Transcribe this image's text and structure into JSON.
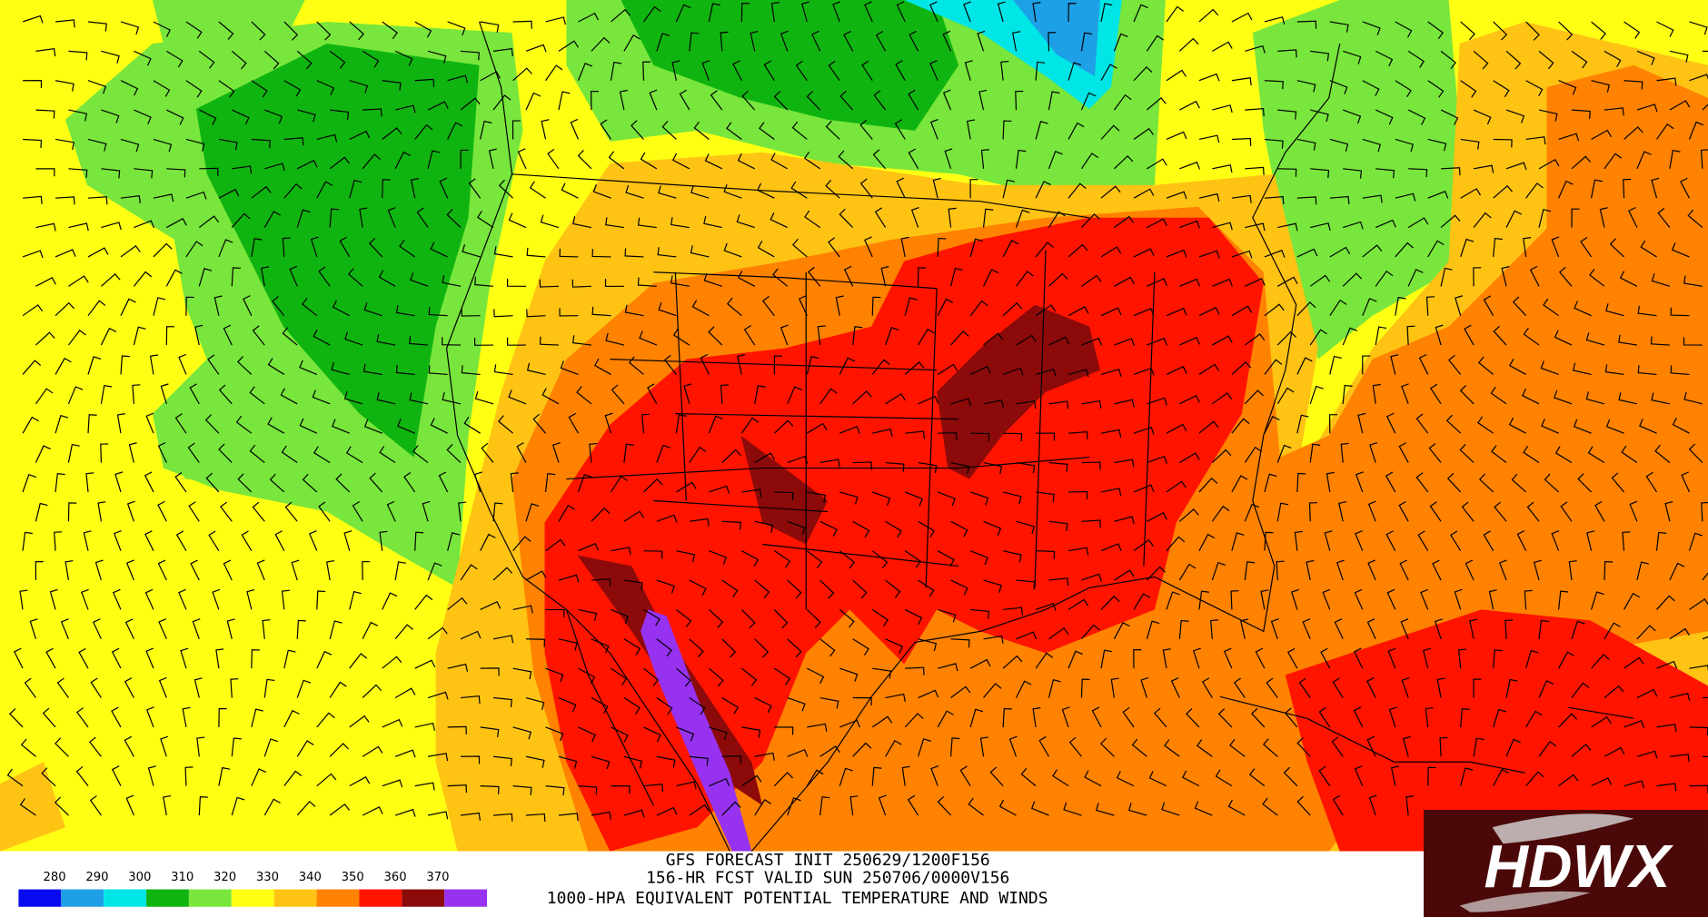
{
  "map": {
    "legend": {
      "labels": [
        280,
        290,
        300,
        310,
        320,
        330,
        340,
        350,
        360,
        370
      ],
      "colors": [
        "#0a0af0",
        "#1ea0e6",
        "#00e6e6",
        "#10b410",
        "#78e63c",
        "#ffff14",
        "#ffc314",
        "#ff8200",
        "#ff1400",
        "#8c0a0a",
        "#9632f0"
      ]
    },
    "title_lines": [
      "GFS FORECAST INIT 250629/1200F156",
      "156-HR FCST VALID SUN 250706/0000V156",
      "1000-HPA EQUIVALENT POTENTIAL TEMPERATURE AND WINDS"
    ],
    "logo": {
      "text": "HDWX"
    }
  }
}
